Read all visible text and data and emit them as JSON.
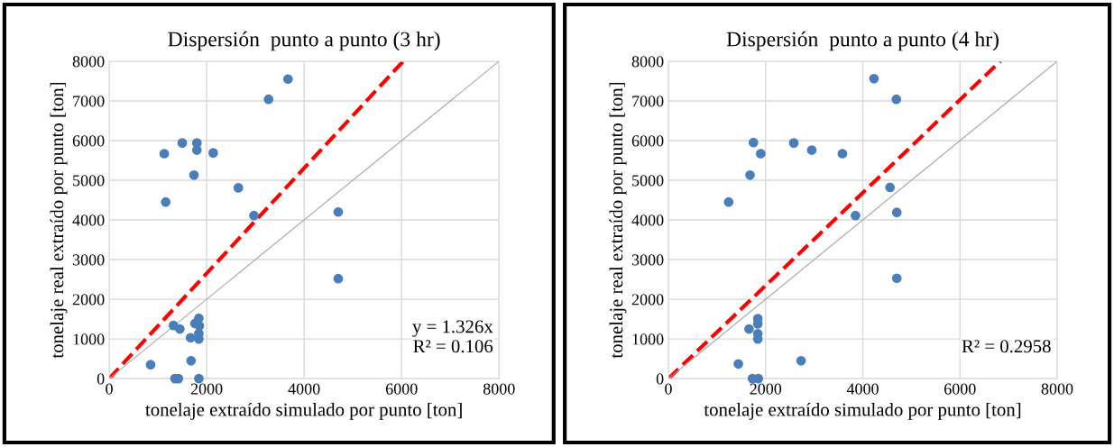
{
  "chart_data": [
    {
      "type": "scatter",
      "title": "Dispersión  punto a punto (3 hr)",
      "xlabel": "tonelaje extraído simulado por punto [ton]",
      "ylabel": "tonelaje real extraído por punto [ton]",
      "xlim": [
        0,
        8000
      ],
      "ylim": [
        0,
        8000
      ],
      "xticks": [
        0,
        2000,
        4000,
        6000,
        8000
      ],
      "yticks": [
        0,
        1000,
        2000,
        3000,
        4000,
        5000,
        6000,
        7000,
        8000
      ],
      "grid": true,
      "annotations": [
        "y = 1.326x\nR² = 0.106"
      ],
      "series": [
        {
          "marker": "circle",
          "color": "#4a7ebb",
          "x": [
            3670,
            3270,
            1500,
            1800,
            1800,
            1130,
            2135,
            1740,
            2650,
            1160,
            2970,
            4700,
            4700,
            1320,
            1450,
            1840,
            1760,
            1850,
            1840,
            1670,
            1840,
            850,
            1680,
            1350,
            1420,
            1840
          ],
          "values": [
            7550,
            7040,
            5940,
            5940,
            5760,
            5670,
            5690,
            5130,
            4810,
            4450,
            4110,
            4200,
            2520,
            1340,
            1250,
            1520,
            1390,
            1330,
            1140,
            1030,
            1000,
            350,
            450,
            0,
            0,
            0
          ]
        },
        {
          "type": "line",
          "line_style": "dashed",
          "color": "#ff0000",
          "x": [
            0,
            6033
          ],
          "values": [
            0,
            8000
          ]
        },
        {
          "type": "line",
          "line_style": "solid",
          "color": "#a6a6a6",
          "x": [
            0,
            8000
          ],
          "values": [
            0,
            8000
          ]
        }
      ]
    },
    {
      "type": "scatter",
      "title": "Dispersión  punto a punto (4 hr)",
      "xlabel": "tonelaje extraído simulado por punto [ton]",
      "ylabel": "tonelaje real extraído por punto [ton]",
      "xlim": [
        0,
        8000
      ],
      "ylim": [
        0,
        8000
      ],
      "xticks": [
        0,
        2000,
        4000,
        6000,
        8000
      ],
      "yticks": [
        0,
        1000,
        2000,
        3000,
        4000,
        5000,
        6000,
        7000,
        8000
      ],
      "grid": true,
      "annotations": [
        "R² = 0.2958"
      ],
      "series": [
        {
          "marker": "circle",
          "color": "#4a7ebb",
          "x": [
            4230,
            4690,
            1750,
            2580,
            1900,
            2950,
            3580,
            1680,
            4560,
            1240,
            3850,
            4700,
            4700,
            1840,
            1840,
            1840,
            1840,
            1660,
            1440,
            2730,
            1730,
            1850
          ],
          "values": [
            7560,
            7040,
            5950,
            5940,
            5670,
            5760,
            5670,
            5130,
            4820,
            4450,
            4110,
            4190,
            2530,
            1510,
            1380,
            1130,
            1000,
            1250,
            370,
            450,
            0,
            0
          ]
        },
        {
          "type": "line",
          "line_style": "dashed",
          "color": "#ff0000",
          "x": [
            0,
            6830
          ],
          "values": [
            0,
            8000
          ]
        },
        {
          "type": "line",
          "line_style": "solid",
          "color": "#a6a6a6",
          "x": [
            0,
            8000
          ],
          "values": [
            0,
            8000
          ]
        }
      ]
    }
  ]
}
